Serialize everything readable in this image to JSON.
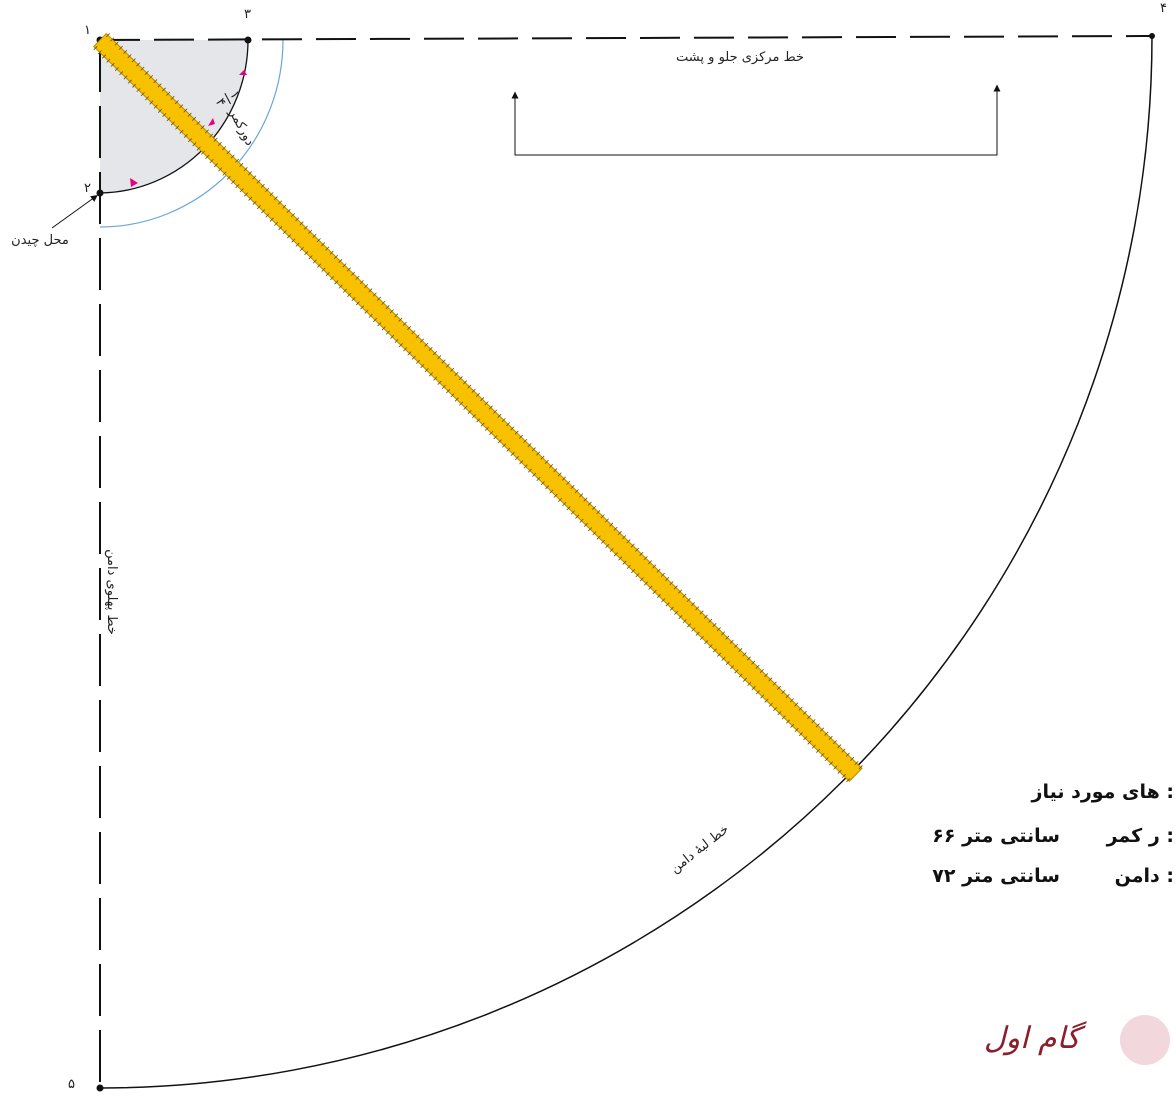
{
  "points": [
    "۱",
    "۲",
    "۳",
    "۴",
    "۵"
  ],
  "labels": {
    "center_line": "خط مرکزی جلو و پشت",
    "cut_place": "محل چیدن",
    "waist_fraction": {
      "numerator": "۱",
      "denominator": "۴",
      "text": "دورکمر"
    },
    "side_line": "خط پهلوی دامن",
    "hem_line": "خط لبهٔ دامن"
  },
  "measurements": {
    "title": "های مورد نیاز :",
    "rows": [
      [
        "ر کمر :",
        "۶۶ سانتی متر"
      ],
      [
        "دامن :",
        "۷۲ سانتی متر"
      ]
    ]
  },
  "logo": "گام اول"
}
